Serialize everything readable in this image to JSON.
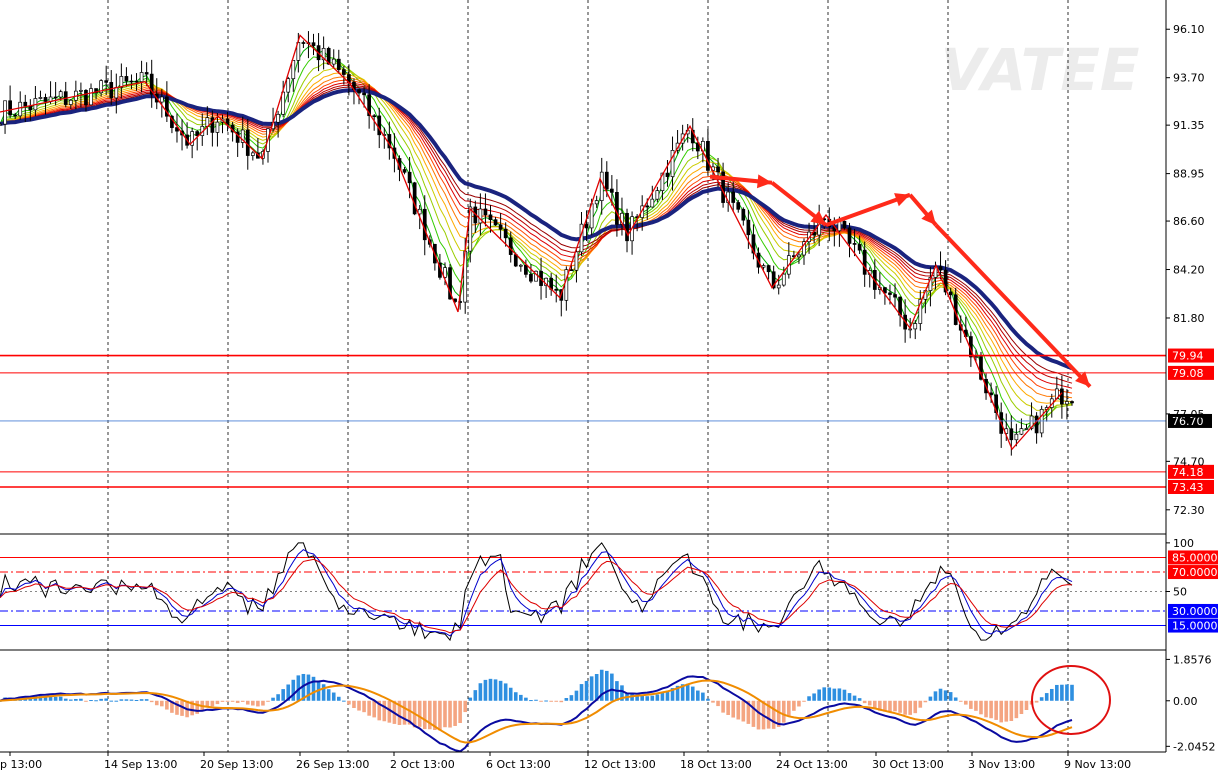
{
  "chart_data": {
    "type": "candlestick",
    "watermark": "VATEE",
    "x_tick_labels": [
      "p 13:00",
      "14 Sep 13:00",
      "20 Sep 13:00",
      "26 Sep 13:00",
      "2 Oct 13:00",
      "6 Oct 13:00",
      "12 Oct 13:00",
      "18 Oct 13:00",
      "24 Oct 13:00",
      "30 Oct 13:00",
      "3 Nov 13:00",
      "9 Nov 13:00"
    ],
    "price_panel": {
      "ylim": [
        71.3,
        97.3
      ],
      "y_tick_labels": [
        "96.10",
        "93.70",
        "91.35",
        "88.95",
        "86.60",
        "84.20",
        "81.80",
        "77.05",
        "74.70",
        "72.30"
      ],
      "y_tick_values": [
        96.1,
        93.7,
        91.35,
        88.95,
        86.6,
        84.2,
        81.8,
        77.05,
        74.7,
        72.3
      ],
      "current_price": "76.70",
      "current_price_value": 76.7,
      "levels": [
        {
          "label": "79.94",
          "value": 79.94,
          "color": "#ff0000"
        },
        {
          "label": "79.08",
          "value": 79.08,
          "color": "#ff0000"
        },
        {
          "label": "74.18",
          "value": 74.18,
          "color": "#ff0000"
        },
        {
          "label": "73.43",
          "value": 73.43,
          "color": "#ff0000"
        }
      ],
      "zigzag": [
        92.0,
        93.5,
        90.4,
        91.8,
        89.7,
        95.8,
        93.4,
        90.2,
        82.1,
        87.2,
        82.8,
        88.7,
        85.9,
        91.3,
        83.3,
        86.9,
        81.3,
        84.4,
        75.3,
        78.1
      ],
      "trend": [
        88.8,
        88.5,
        87.2,
        86.4,
        85.0,
        85.6,
        86.4,
        87.9,
        87.4,
        86.4,
        85.2,
        84.3,
        83.4,
        81.9,
        79.6,
        78.4
      ]
    },
    "oscillator_panel": {
      "ylim": [
        -5,
        105
      ],
      "y_tick_labels": [
        "100",
        "50"
      ],
      "y_tick_values": [
        100,
        50
      ],
      "levels": [
        {
          "label": "85.0000",
          "value": 85,
          "color": "#ff0000"
        },
        {
          "label": "70.0000",
          "value": 70,
          "color": "#ff0000"
        },
        {
          "label": "30.0000",
          "value": 30,
          "color": "#0000ff"
        },
        {
          "label": "15.0000",
          "value": 15,
          "color": "#0000ff"
        }
      ]
    },
    "macd_panel": {
      "ylim": [
        -2.3,
        2.1
      ],
      "y_tick_labels": [
        "1.8576",
        "0.00",
        "-2.0452"
      ],
      "y_tick_values": [
        1.8576,
        0.0,
        -2.0452
      ]
    }
  }
}
